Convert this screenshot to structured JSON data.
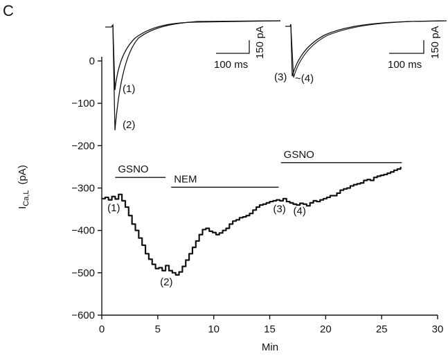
{
  "panel_label": "C",
  "chart_data": {
    "type": "line",
    "xlabel": "Min",
    "ylabel_main": "I",
    "ylabel_sub": "Ca,L",
    "ylabel_unit": "(pA)",
    "xlim": [
      0,
      30
    ],
    "ylim": [
      -600,
      0
    ],
    "x_ticks": [
      "0",
      "5",
      "10",
      "15",
      "20",
      "25",
      "30"
    ],
    "y_ticks": [
      "0",
      "−100",
      "−200",
      "−300",
      "−400",
      "−500",
      "−600"
    ],
    "grid": false,
    "series": [
      {
        "x": [
          0,
          0.3,
          0.6,
          0.9,
          1.2,
          1.5,
          1.8,
          2.1,
          2.4,
          2.7,
          3.0,
          3.3,
          3.6,
          3.9,
          4.2,
          4.5,
          4.8,
          5.1,
          5.4,
          5.7,
          6.0,
          6.3,
          6.6,
          6.9,
          7.2,
          7.5,
          7.8,
          8.1,
          8.4,
          8.7,
          9.0,
          9.3,
          9.6,
          9.9,
          10.2,
          10.5,
          10.8,
          11.1,
          11.4,
          11.7,
          12.0,
          12.3,
          12.6,
          12.9,
          13.2,
          13.5,
          13.8,
          14.1,
          14.4,
          14.7,
          15.0,
          15.3,
          15.6,
          15.9,
          16.2,
          16.5,
          16.8,
          17.1,
          17.4,
          17.7,
          18.0,
          18.3,
          18.6,
          18.9,
          19.2,
          19.5,
          19.8,
          20.1,
          20.4,
          20.7,
          21.0,
          21.3,
          21.6,
          21.9,
          22.2,
          22.5,
          22.8,
          23.1,
          23.4,
          23.7,
          24.0,
          24.3,
          24.6,
          24.9,
          25.2,
          25.5,
          25.8,
          26.1,
          26.4,
          26.7
        ],
        "y": [
          -325,
          -322,
          -328,
          -320,
          -326,
          -315,
          -330,
          -345,
          -365,
          -385,
          -400,
          -418,
          -435,
          -455,
          -468,
          -480,
          -490,
          -488,
          -495,
          -483,
          -495,
          -500,
          -505,
          -498,
          -485,
          -470,
          -455,
          -440,
          -425,
          -410,
          -398,
          -395,
          -402,
          -405,
          -410,
          -406,
          -400,
          -395,
          -385,
          -378,
          -375,
          -370,
          -368,
          -365,
          -360,
          -352,
          -345,
          -340,
          -338,
          -335,
          -332,
          -330,
          -328,
          -330,
          -325,
          -332,
          -335,
          -338,
          -340,
          -336,
          -338,
          -342,
          -335,
          -330,
          -332,
          -328,
          -325,
          -322,
          -318,
          -318,
          -312,
          -305,
          -302,
          -300,
          -295,
          -292,
          -290,
          -288,
          -282,
          -280,
          -282,
          -275,
          -272,
          -270,
          -268,
          -265,
          -262,
          -258,
          -255,
          -250
        ]
      }
    ],
    "bars": [
      {
        "label": "GSNO",
        "x0": 1.2,
        "x1": 5.7,
        "y": -275
      },
      {
        "label": "NEM",
        "x0": 6.2,
        "x1": 15.8,
        "y": -298
      },
      {
        "label": "GSNO",
        "x0": 16.0,
        "x1": 26.8,
        "y": -240
      }
    ],
    "annotations": [
      {
        "text": "(1)",
        "x": 1.0,
        "y": -355
      },
      {
        "text": "(2)",
        "x": 5.7,
        "y": -530
      },
      {
        "text": "(3)",
        "x": 15.8,
        "y": -357
      },
      {
        "text": "(4)",
        "x": 17.6,
        "y": -362
      }
    ],
    "insets": [
      {
        "traces": [
          {
            "label": "(1)",
            "peak": 1.0
          },
          {
            "label": "(2)",
            "peak": 2.0
          }
        ],
        "scale_time": "100 ms",
        "scale_current": "150 pA"
      },
      {
        "traces": [
          {
            "label": "(3)",
            "peak": 1.0
          },
          {
            "label": "~(4)",
            "peak": 1.0
          }
        ],
        "scale_time": "100 ms",
        "scale_current": "150 pA"
      }
    ]
  }
}
